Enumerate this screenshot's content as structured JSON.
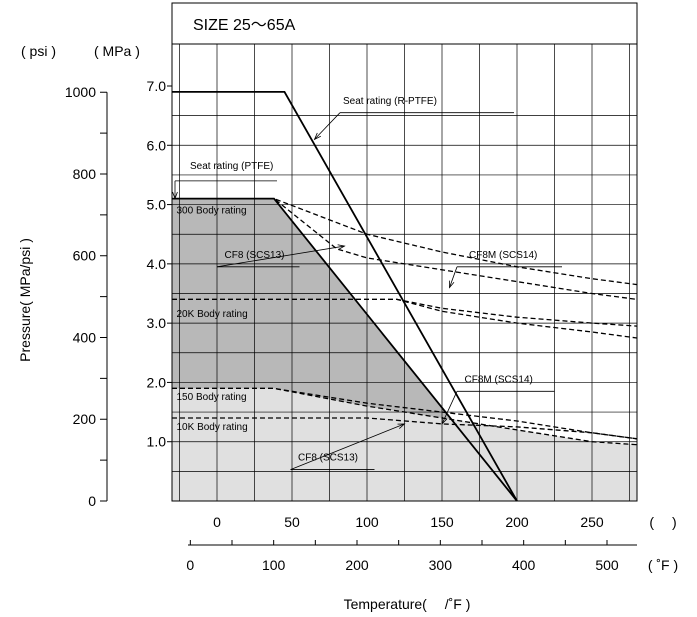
{
  "chart_data": {
    "type": "line",
    "size_label": "SIZE 25～65A",
    "ylabel": "Pressure( MPa/psi )",
    "xlabel": "Temperature(　 /˚F )",
    "y_unit_psi": "( psi )",
    "y_unit_mpa": "( MPa )",
    "x_unit_c": "(　 )",
    "x_unit_f": "( ˚F )",
    "xlim_c": [
      -30,
      280
    ],
    "ylim_mpa": [
      0,
      7.0
    ],
    "x_ticks_c": [
      "0",
      "50",
      "100",
      "150",
      "200",
      "250"
    ],
    "x_ticks_f": [
      "0",
      "100",
      "200",
      "300",
      "400",
      "500"
    ],
    "y_ticks_mpa": [
      "1.0",
      "2.0",
      "3.0",
      "4.0",
      "5.0",
      "6.0",
      "7.0"
    ],
    "y_ticks_psi": [
      "0",
      "200",
      "400",
      "600",
      "800",
      "1000"
    ],
    "colors": {
      "dark_region": "#b8b8b8",
      "light_region": "#e0e0e0",
      "line": "#000000"
    },
    "series": [
      {
        "name": "Seat rating (R-PTFE)",
        "style": "solid",
        "x": [
          -30,
          45,
          200
        ],
        "y": [
          6.9,
          6.9,
          0
        ]
      },
      {
        "name": "Seat rating (PTFE)",
        "style": "solid",
        "x": [
          -30,
          38,
          200
        ],
        "y": [
          5.1,
          5.1,
          0
        ]
      },
      {
        "name": "CF8 (SCS13)",
        "style": "dashed",
        "x": [
          -30,
          38,
          80,
          100,
          150,
          200,
          250,
          280
        ],
        "y": [
          5.1,
          5.1,
          4.25,
          4.1,
          3.9,
          3.7,
          3.5,
          3.4
        ]
      },
      {
        "name": "CF8M (SCS14)",
        "style": "dashed",
        "x": [
          -30,
          38,
          100,
          150,
          200,
          250,
          280
        ],
        "y": [
          5.1,
          5.1,
          4.5,
          4.2,
          3.95,
          3.75,
          3.65
        ]
      },
      {
        "name": "20K Body rating CF8 (SCS13)",
        "style": "dashed",
        "x": [
          -30,
          120,
          150,
          200,
          250,
          280
        ],
        "y": [
          3.4,
          3.4,
          3.2,
          3.0,
          2.85,
          2.75
        ]
      },
      {
        "name": "20K Body rating CF8M (SCS14)",
        "style": "dashed",
        "x": [
          -30,
          120,
          150,
          200,
          250,
          280
        ],
        "y": [
          3.4,
          3.4,
          3.25,
          3.1,
          3.0,
          2.95
        ]
      },
      {
        "name": "150 Body rating",
        "style": "dashed",
        "x": [
          -30,
          38,
          100,
          150,
          200,
          250,
          280
        ],
        "y": [
          1.9,
          1.9,
          1.6,
          1.4,
          1.2,
          1.0,
          0.95
        ]
      },
      {
        "name": "150 Body rating CF8M",
        "style": "dashed",
        "x": [
          -30,
          38,
          100,
          150,
          200,
          250,
          280
        ],
        "y": [
          1.9,
          1.9,
          1.65,
          1.5,
          1.35,
          1.15,
          1.05
        ]
      },
      {
        "name": "10K Body rating",
        "style": "dashed",
        "x": [
          -30,
          100,
          150,
          200,
          250,
          280
        ],
        "y": [
          1.4,
          1.4,
          1.3,
          1.25,
          1.15,
          1.05
        ]
      }
    ],
    "annotations": [
      {
        "text": "Seat rating (R-PTFE)",
        "x": 84,
        "y": 6.7,
        "leader": [
          [
            82,
            6.55
          ],
          [
            198,
            6.55
          ]
        ],
        "arrow_to": [
          65,
          6.1
        ]
      },
      {
        "text": "Seat rating (PTFE)",
        "x": -18,
        "y": 5.6,
        "leader": [
          [
            -28,
            5.4
          ],
          [
            40,
            5.4
          ]
        ],
        "arrow_to": [
          -28,
          5.1
        ]
      },
      {
        "text": "300 Body rating",
        "x": -27,
        "y": 4.85
      },
      {
        "text": "CF8 (SCS13)",
        "x": 5,
        "y": 4.1,
        "leader": [
          [
            0,
            3.95
          ],
          [
            55,
            3.95
          ]
        ],
        "arrow_to": [
          85,
          4.3
        ]
      },
      {
        "text": "CF8M (SCS14)",
        "x": 168,
        "y": 4.1,
        "leader": [
          [
            160,
            3.95
          ],
          [
            230,
            3.95
          ]
        ],
        "arrow_to": [
          155,
          3.6
        ]
      },
      {
        "text": "20K Body rating",
        "x": -27,
        "y": 3.1
      },
      {
        "text": "150 Body rating",
        "x": -27,
        "y": 1.7
      },
      {
        "text": "CF8M (SCS14)",
        "x": 165,
        "y": 2.0,
        "leader": [
          [
            160,
            1.85
          ],
          [
            225,
            1.85
          ]
        ],
        "arrow_to": [
          150,
          1.3
        ]
      },
      {
        "text": "10K Body rating",
        "x": -27,
        "y": 1.2
      },
      {
        "text": "CF8 (SCS13)",
        "x": 54,
        "y": 0.68,
        "leader": [
          [
            49,
            0.53
          ],
          [
            105,
            0.53
          ]
        ],
        "arrow_to": [
          125,
          1.3
        ]
      }
    ],
    "grid": true
  }
}
